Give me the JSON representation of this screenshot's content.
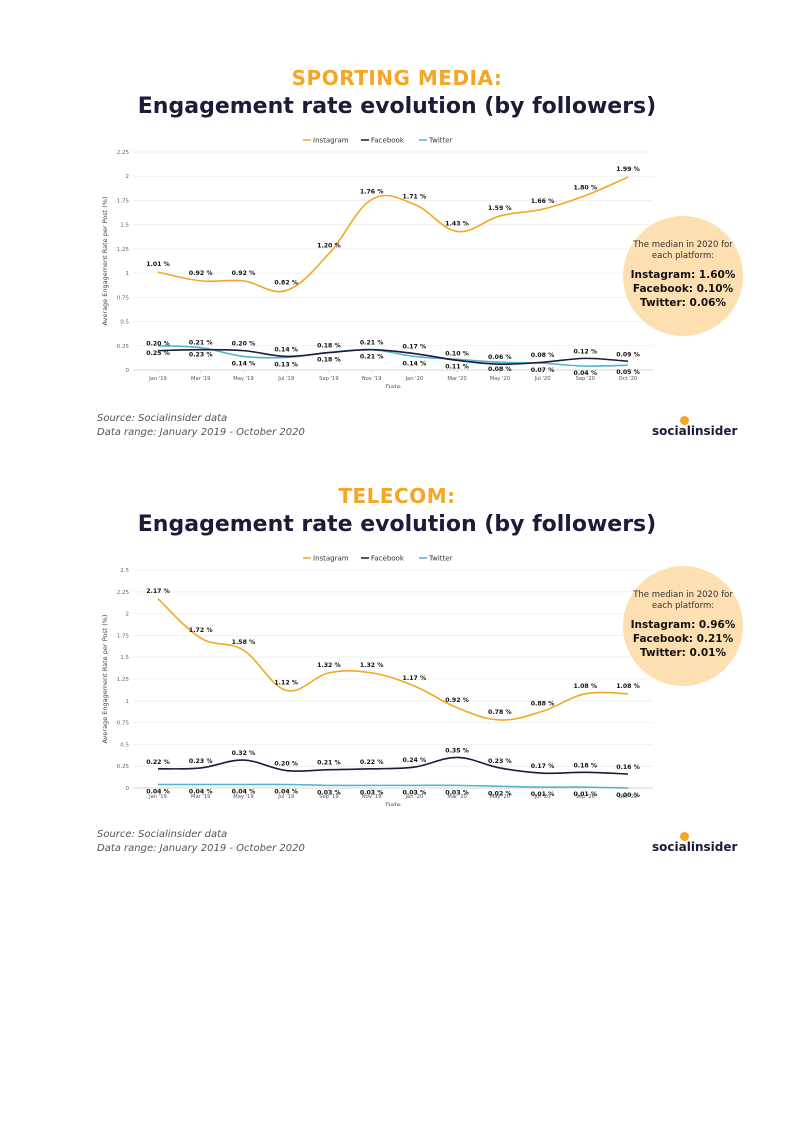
{
  "colors": {
    "instagram": "#f5a623",
    "facebook": "#1b1b3a",
    "twitter": "#4fb5d1",
    "accent": "#f5a623",
    "circle": "#fddfb1"
  },
  "brand": {
    "name": "socialinsider"
  },
  "sections": [
    {
      "category": "SPORTING MEDIA:",
      "title": "Engagement rate evolution (by followers)",
      "source": "Source: Socialinsider data",
      "range": "Data range: January 2019 - October 2020",
      "median": {
        "intro": "The median in 2020 for each platform:",
        "instagram": "Instagram: 1.60%",
        "facebook": "Facebook: 0.10%",
        "twitter": "Twitter: 0.06%"
      }
    },
    {
      "category": "TELECOM:",
      "title": "Engagement rate evolution (by followers)",
      "source": "Source: Socialinsider data",
      "range": "Data range: January 2019 - October 2020",
      "median": {
        "intro": "The median in 2020 for each platform:",
        "instagram": "Instagram: 0.96%",
        "facebook": "Facebook: 0.21%",
        "twitter": "Twitter: 0.01%"
      }
    }
  ],
  "chart_data": [
    {
      "type": "line",
      "title": "SPORTING MEDIA: Engagement rate evolution (by followers)",
      "xlabel": "Date",
      "ylabel": "Average Engagement Rate per Post (%)",
      "ylim": [
        0,
        2.25
      ],
      "yticks": [
        "0",
        "0.25",
        "0.5",
        "0.75",
        "1",
        "1.25",
        "1.5",
        "1.75",
        "2",
        "2.25"
      ],
      "categories": [
        "Jan '19",
        "Mar '19",
        "May '19",
        "Jul '19",
        "Sep '19",
        "Nov '19",
        "Jan '20",
        "Mar '20",
        "May '20",
        "Jul '20",
        "Sep '20",
        "Oct '20"
      ],
      "legend": "top-center",
      "series": [
        {
          "name": "Instagram",
          "color": "#f5a623",
          "values": [
            1.01,
            0.92,
            0.92,
            0.82,
            1.2,
            1.76,
            1.71,
            1.43,
            1.59,
            1.66,
            1.8,
            1.99
          ],
          "labels": [
            "1.01 %",
            "0.92 %",
            "0.92 %",
            "0.82 %",
            "1.20 %",
            "1.76 %",
            "1.71 %",
            "1.43 %",
            "1.59 %",
            "1.66 %",
            "1.80 %",
            "1.99 %"
          ]
        },
        {
          "name": "Facebook",
          "color": "#1b1b3a",
          "values": [
            0.2,
            0.21,
            0.2,
            0.14,
            0.18,
            0.21,
            0.17,
            0.1,
            0.06,
            0.08,
            0.12,
            0.09
          ],
          "labels": [
            "0.20 %",
            "0.21 %",
            "0.20 %",
            "0.14 %",
            "0.18 %",
            "0.21 %",
            "0.17 %",
            "0.10 %",
            "0.06 %",
            "0.08 %",
            "0.12 %",
            "0.09 %"
          ]
        },
        {
          "name": "Twitter",
          "color": "#4fb5d1",
          "values": [
            0.25,
            0.23,
            0.14,
            0.13,
            0.18,
            0.21,
            0.14,
            0.11,
            0.08,
            0.07,
            0.04,
            0.05
          ],
          "labels": [
            "0.25 %",
            "0.23 %",
            "0.14 %",
            "0.13 %",
            "0.18 %",
            "0.21 %",
            "0.14 %",
            "0.11 %",
            "0.08 %",
            "0.07 %",
            "0.04 %",
            "0.05 %"
          ]
        }
      ]
    },
    {
      "type": "line",
      "title": "TELECOM: Engagement rate evolution (by followers)",
      "xlabel": "Date",
      "ylabel": "Average Engagement Rate per Post (%)",
      "ylim": [
        0,
        2.5
      ],
      "yticks": [
        "0",
        "0.25",
        "0.5",
        "0.75",
        "1",
        "1.25",
        "1.5",
        "1.75",
        "2",
        "2.25",
        "2.5"
      ],
      "categories": [
        "Jan '19",
        "Mar '19",
        "May '19",
        "Jul '19",
        "Sep '19",
        "Nov '19",
        "Jan '20",
        "Mar '20",
        "May '20",
        "Jul '20",
        "Sep '20",
        "Oct '20"
      ],
      "legend": "top-center",
      "series": [
        {
          "name": "Instagram",
          "color": "#f5a623",
          "values": [
            2.17,
            1.72,
            1.58,
            1.12,
            1.32,
            1.32,
            1.17,
            0.92,
            0.78,
            0.88,
            1.08,
            1.08
          ],
          "labels": [
            "2.17 %",
            "1.72 %",
            "1.58 %",
            "1.12 %",
            "1.32 %",
            "1.32 %",
            "1.17 %",
            "0.92 %",
            "0.78 %",
            "0.88 %",
            "1.08 %",
            "1.08 %"
          ]
        },
        {
          "name": "Facebook",
          "color": "#1b1b3a",
          "values": [
            0.22,
            0.23,
            0.32,
            0.2,
            0.21,
            0.22,
            0.24,
            0.35,
            0.23,
            0.17,
            0.18,
            0.16
          ],
          "labels": [
            "0.22 %",
            "0.23 %",
            "0.32 %",
            "0.20 %",
            "0.21 %",
            "0.22 %",
            "0.24 %",
            "0.35 %",
            "0.23 %",
            "0.17 %",
            "0.18 %",
            "0.16 %"
          ]
        },
        {
          "name": "Twitter",
          "color": "#4fb5d1",
          "values": [
            0.04,
            0.04,
            0.04,
            0.04,
            0.03,
            0.03,
            0.03,
            0.03,
            0.02,
            0.01,
            0.01,
            0.0
          ],
          "labels": [
            "0.04 %",
            "0.04 %",
            "0.04 %",
            "0.04 %",
            "0.03 %",
            "0.03 %",
            "0.03 %",
            "0.03 %",
            "0.02 %",
            "0.01 %",
            "0.01 %",
            "0.00 %"
          ]
        }
      ]
    }
  ]
}
